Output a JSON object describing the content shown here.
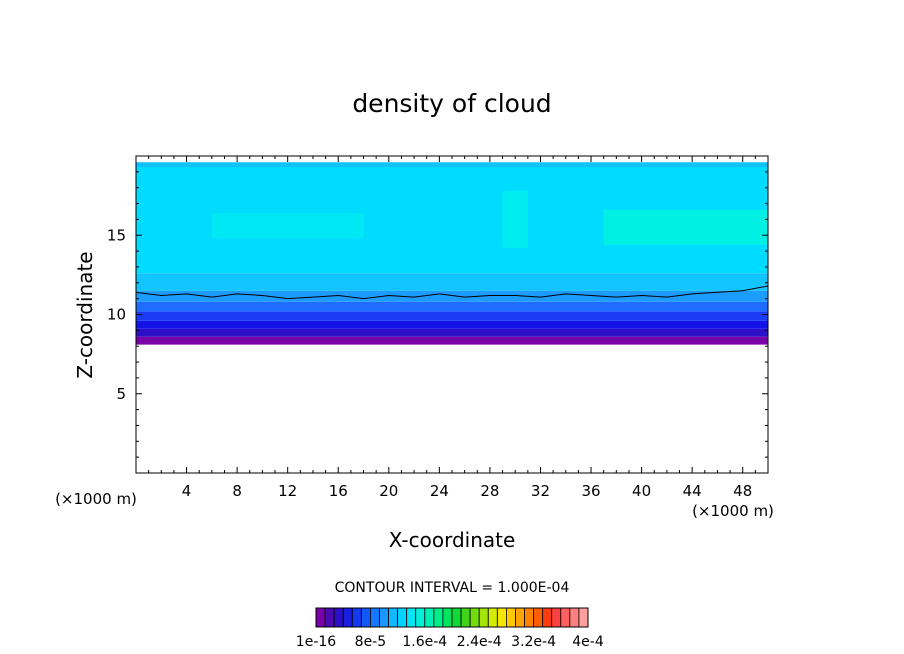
{
  "chart_data": {
    "type": "heatmap",
    "title": "density of cloud",
    "xlabel": "X-coordinate",
    "ylabel": "Z-coordinate",
    "x_unit_label": "(×1000 m)",
    "x_unit_label_left": "(×1000 m)",
    "xlim": [
      0,
      50
    ],
    "ylim": [
      0,
      20
    ],
    "x_ticks": [
      4,
      8,
      12,
      16,
      20,
      24,
      28,
      32,
      36,
      40,
      44,
      48
    ],
    "y_ticks": [
      5,
      10,
      15
    ],
    "contour_interval_text": "CONTOUR INTERVAL = 1.000E-04",
    "colorbar": {
      "colors": [
        "#7a00a8",
        "#4b0ab4",
        "#2c10c8",
        "#1a1ee0",
        "#1238f0",
        "#1258f8",
        "#1678ff",
        "#1a98ff",
        "#10b8ff",
        "#00d2ff",
        "#00e6f4",
        "#00f0dc",
        "#00f0b4",
        "#00ee8a",
        "#00e660",
        "#10d836",
        "#40d418",
        "#72dc0a",
        "#a4e406",
        "#d4ec04",
        "#f4e600",
        "#ffc800",
        "#ffa400",
        "#ff8200",
        "#ff5e00",
        "#ff3c10",
        "#ff4040",
        "#ff6060",
        "#ff8080",
        "#ffa0a0"
      ],
      "tick_labels": [
        "1e-16",
        "8e-5",
        "1.6e-4",
        "2.4e-4",
        "3.2e-4",
        "4e-4"
      ]
    },
    "bands": [
      {
        "z_bottom": 8.1,
        "z_top": 8.6,
        "color": "#7a00a8"
      },
      {
        "z_bottom": 8.6,
        "z_top": 9.1,
        "color": "#2c10c8"
      },
      {
        "z_bottom": 9.1,
        "z_top": 9.6,
        "color": "#1212e6"
      },
      {
        "z_bottom": 9.6,
        "z_top": 10.2,
        "color": "#1a3cf4"
      },
      {
        "z_bottom": 10.2,
        "z_top": 10.8,
        "color": "#1f6cff"
      },
      {
        "z_bottom": 10.8,
        "z_top": 11.5,
        "color": "#1c9cff"
      },
      {
        "z_bottom": 11.5,
        "z_top": 12.6,
        "color": "#12c4ff"
      },
      {
        "z_bottom": 12.6,
        "z_top": 19.6,
        "color": "#00dcff"
      }
    ],
    "patches": [
      {
        "x0": 29,
        "x1": 31,
        "z0": 14.2,
        "z1": 17.8,
        "color": "#00ecf0"
      },
      {
        "x0": 37,
        "x1": 50,
        "z0": 14.4,
        "z1": 16.6,
        "color": "#00f0e4"
      },
      {
        "x0": 6,
        "x1": 18,
        "z0": 14.8,
        "z1": 16.4,
        "color": "#00e8f4"
      },
      {
        "x0": 0,
        "x1": 50,
        "z0": 19.3,
        "z1": 19.6,
        "color": "#10c0ff"
      }
    ],
    "contour_line": {
      "x": [
        0,
        2,
        4,
        6,
        8,
        10,
        12,
        14,
        16,
        18,
        20,
        22,
        24,
        26,
        28,
        30,
        32,
        34,
        36,
        38,
        40,
        42,
        44,
        46,
        48,
        50
      ],
      "z": [
        11.4,
        11.2,
        11.3,
        11.1,
        11.3,
        11.2,
        11.0,
        11.1,
        11.2,
        11.0,
        11.2,
        11.1,
        11.3,
        11.1,
        11.2,
        11.2,
        11.1,
        11.3,
        11.2,
        11.1,
        11.2,
        11.1,
        11.3,
        11.4,
        11.5,
        11.8
      ]
    }
  }
}
